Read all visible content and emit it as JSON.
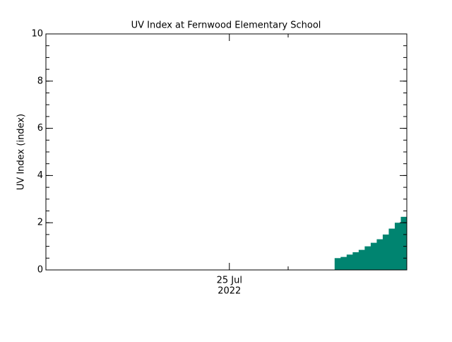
{
  "chart_data": {
    "type": "step-area",
    "title": "UV Index at Fernwood Elementary School",
    "y_label": "UV Index (index)",
    "x_sublabel": "2022",
    "categories": [
      null,
      null,
      null,
      null,
      null,
      null,
      null,
      null,
      null,
      null,
      null,
      null,
      null,
      null,
      null,
      null,
      null,
      null,
      null,
      null,
      null,
      null,
      null,
      null,
      null,
      null,
      null,
      null,
      null,
      null,
      "25 Jul",
      null,
      null,
      null,
      null,
      null,
      null,
      null,
      null,
      null,
      null,
      null,
      null,
      null,
      null,
      null,
      null,
      null,
      null,
      null,
      null,
      null,
      null,
      null,
      null,
      null,
      null,
      null,
      null,
      null
    ],
    "values": [
      null,
      null,
      null,
      null,
      null,
      null,
      null,
      null,
      null,
      null,
      null,
      null,
      null,
      null,
      null,
      null,
      null,
      null,
      null,
      null,
      null,
      null,
      null,
      null,
      null,
      null,
      null,
      null,
      null,
      null,
      null,
      null,
      null,
      null,
      null,
      null,
      null,
      null,
      null,
      null,
      null,
      null,
      null,
      null,
      null,
      null,
      null,
      null,
      0.5,
      0.55,
      0.65,
      0.75,
      0.85,
      1.0,
      1.15,
      1.3,
      1.5,
      1.75,
      2.0,
      2.25
    ],
    "color": "#008470",
    "ylim": [
      0,
      10
    ],
    "yticks": [
      0,
      2,
      4,
      6,
      8,
      10
    ]
  }
}
